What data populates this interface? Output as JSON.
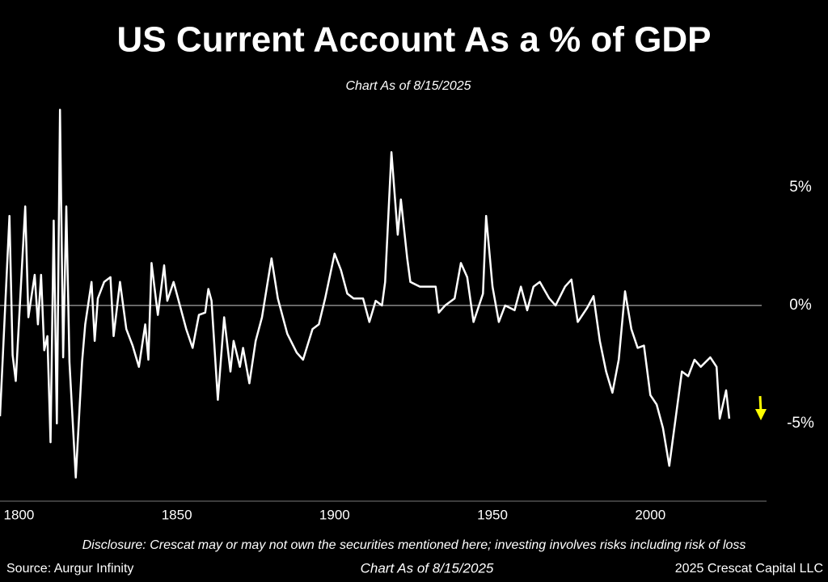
{
  "chart_data": {
    "type": "line",
    "title": "US Current Account As a % of GDP",
    "subtitle": "Chart As of 8/15/2025",
    "x": [
      1794,
      1797,
      1798,
      1799,
      1802,
      1803,
      1805,
      1806,
      1807,
      1808,
      1809,
      1810,
      1811,
      1812,
      1813,
      1814,
      1815,
      1816,
      1818,
      1820,
      1821,
      1823,
      1824,
      1825,
      1827,
      1829,
      1830,
      1832,
      1834,
      1836,
      1838,
      1840,
      1841,
      1842,
      1844,
      1846,
      1847,
      1849,
      1851,
      1853,
      1855,
      1857,
      1859,
      1860,
      1861,
      1863,
      1865,
      1867,
      1868,
      1870,
      1871,
      1873,
      1875,
      1877,
      1880,
      1882,
      1885,
      1888,
      1890,
      1893,
      1895,
      1897,
      1900,
      1902,
      1904,
      1906,
      1909,
      1911,
      1913,
      1915,
      1916,
      1918,
      1920,
      1921,
      1923,
      1924,
      1927,
      1929,
      1932,
      1933,
      1935,
      1938,
      1940,
      1942,
      1944,
      1947,
      1948,
      1950,
      1952,
      1954,
      1957,
      1959,
      1961,
      1963,
      1965,
      1968,
      1970,
      1973,
      1975,
      1977,
      1980,
      1982,
      1984,
      1986,
      1988,
      1990,
      1992,
      1994,
      1996,
      1998,
      2000,
      2002,
      2004,
      2006,
      2008,
      2010,
      2012,
      2014,
      2016,
      2019,
      2021,
      2022,
      2024,
      2025
    ],
    "series": [
      {
        "color": "#ffffff",
        "values": [
          -4.7,
          3.8,
          -2.1,
          -3.2,
          4.2,
          -0.5,
          1.3,
          -0.8,
          1.3,
          -1.9,
          -1.3,
          -5.8,
          3.6,
          -5.0,
          8.3,
          -2.2,
          4.2,
          -2.4,
          -7.3,
          -2.4,
          -0.8,
          1.0,
          -1.5,
          0.3,
          1.0,
          1.2,
          -1.3,
          1.0,
          -1.0,
          -1.7,
          -2.6,
          -0.8,
          -2.3,
          1.8,
          -0.4,
          1.7,
          0.2,
          1.0,
          0,
          -1,
          -1.8,
          -0.4,
          -0.3,
          0.7,
          0.2,
          -4,
          -0.5,
          -2.8,
          -1.5,
          -2.6,
          -1.8,
          -3.3,
          -1.5,
          -0.5,
          2,
          0.3,
          -1.2,
          -2.0,
          -2.3,
          -1,
          -0.8,
          0.3,
          2.2,
          1.5,
          0.5,
          0.3,
          0.3,
          -0.7,
          0.2,
          0,
          1,
          6.5,
          3,
          4.5,
          2,
          1,
          0.8,
          0.8,
          0.8,
          -0.3,
          0,
          0.3,
          1.8,
          1.2,
          -0.7,
          0.5,
          3.8,
          0.8,
          -0.7,
          0,
          -0.2,
          0.8,
          -0.2,
          0.8,
          1,
          0.3,
          0,
          0.8,
          1.1,
          -0.7,
          -0.1,
          0.4,
          -1.5,
          -2.8,
          -3.7,
          -2.3,
          0.6,
          -1.0,
          -1.8,
          -1.7,
          -3.8,
          -4.2,
          -5.2,
          -6.8,
          -4.8,
          -2.8,
          -3.0,
          -2.3,
          -2.6,
          -2.2,
          -2.6,
          -4.8,
          -3.6,
          -4.8
        ]
      }
    ],
    "xlim": [
      1794,
      2034
    ],
    "xticks": [
      1800,
      1850,
      1900,
      1950,
      2000
    ],
    "ylim": [
      -8.3,
      8.5
    ],
    "yticks": [
      {
        "value": 5,
        "label": "5%"
      },
      {
        "value": 0,
        "label": "0%"
      },
      {
        "value": -5,
        "label": "-5%"
      }
    ],
    "reference_line": 0,
    "disclosure": "Disclosure: Crescat may or may not own the securities mentioned here; investing involves risks including risk of loss",
    "source": "Source: Aurgur Infinity",
    "footer_date": "Chart As of 8/15/2025",
    "copyright": "2025 Crescat Capital LLC"
  }
}
